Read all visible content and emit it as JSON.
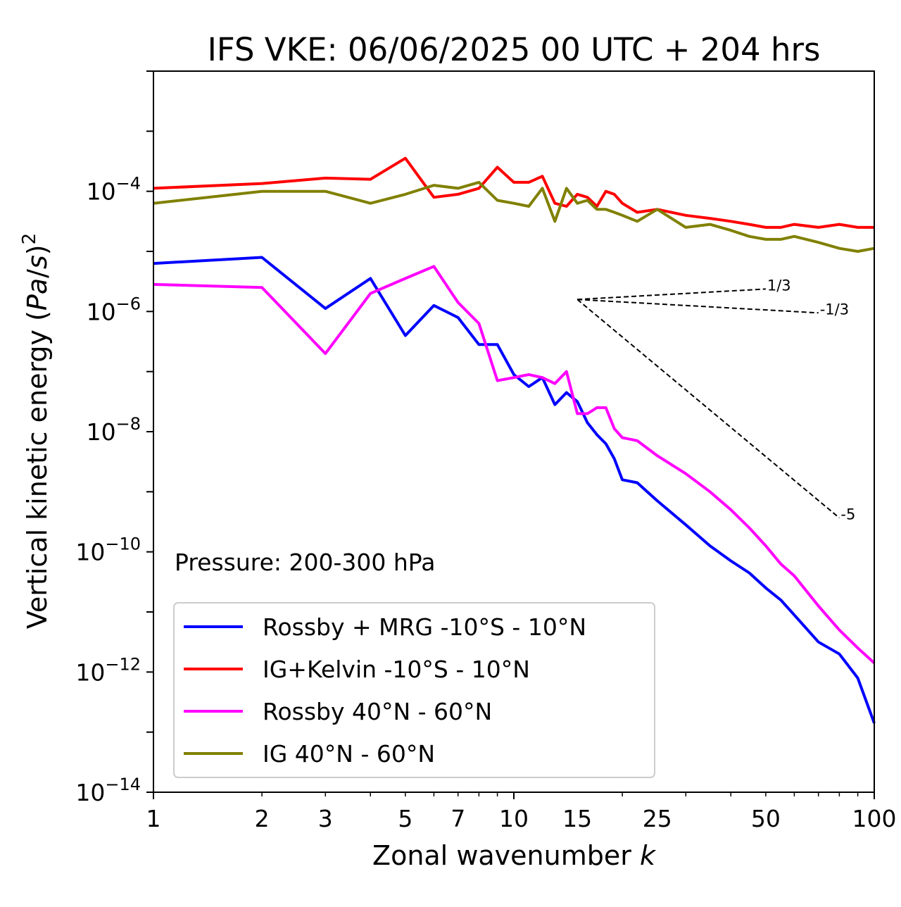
{
  "chart_data": {
    "type": "line",
    "title": "IFS VKE: 06/06/2025 00 UTC + 204 hrs",
    "xlabel": "Zonal wavenumber k",
    "ylabel": "Vertical kinetic energy (Pa/s)²",
    "x_scale": "log",
    "y_scale": "log",
    "xlim": [
      1,
      100
    ],
    "ylim": [
      1e-14,
      0.01
    ],
    "xticks": [
      {
        "value": 1,
        "label": "1"
      },
      {
        "value": 2,
        "label": "2"
      },
      {
        "value": 3,
        "label": "3"
      },
      {
        "value": 5,
        "label": "5"
      },
      {
        "value": 7,
        "label": "7"
      },
      {
        "value": 10,
        "label": "10"
      },
      {
        "value": 15,
        "label": "15"
      },
      {
        "value": 25,
        "label": "25"
      },
      {
        "value": 50,
        "label": "50"
      },
      {
        "value": 100,
        "label": "100"
      }
    ],
    "yticks": [
      {
        "exp": -4,
        "base": "10",
        "sup": "−4"
      },
      {
        "exp": -6,
        "base": "10",
        "sup": "−6"
      },
      {
        "exp": -8,
        "base": "10",
        "sup": "−8"
      },
      {
        "exp": -10,
        "base": "10",
        "sup": "−10"
      },
      {
        "exp": -12,
        "base": "10",
        "sup": "−12"
      },
      {
        "exp": -14,
        "base": "10",
        "sup": "−14"
      }
    ],
    "annotation": "Pressure: 200-300 hPa",
    "legend_position": "lower-left",
    "grid": false,
    "series": [
      {
        "name": "Rossby + MRG -10°S - 10°N",
        "color": "#0000ff",
        "x": [
          1,
          2,
          3,
          4,
          5,
          6,
          7,
          8,
          9,
          10,
          11,
          12,
          13,
          14,
          15,
          16,
          17,
          18,
          19,
          20,
          22,
          25,
          30,
          35,
          40,
          45,
          50,
          55,
          60,
          70,
          80,
          90,
          100
        ],
        "log10_y": [
          -5.2,
          -5.1,
          -5.95,
          -5.45,
          -6.4,
          -5.9,
          -6.1,
          -6.55,
          -6.55,
          -7.05,
          -7.25,
          -7.1,
          -7.55,
          -7.35,
          -7.5,
          -7.85,
          -8.05,
          -8.2,
          -8.45,
          -8.8,
          -8.85,
          -9.15,
          -9.55,
          -9.9,
          -10.15,
          -10.35,
          -10.6,
          -10.8,
          -11.05,
          -11.5,
          -11.7,
          -12.1,
          -12.85
        ]
      },
      {
        "name": "IG+Kelvin -10°S - 10°N",
        "color": "#ff0000",
        "x": [
          1,
          2,
          3,
          4,
          5,
          6,
          7,
          8,
          9,
          10,
          11,
          12,
          13,
          14,
          15,
          16,
          17,
          18,
          19,
          20,
          22,
          25,
          30,
          35,
          40,
          45,
          50,
          55,
          60,
          70,
          80,
          90,
          100
        ],
        "log10_y": [
          -3.95,
          -3.87,
          -3.78,
          -3.8,
          -3.45,
          -4.1,
          -4.05,
          -3.95,
          -3.6,
          -3.85,
          -3.85,
          -3.75,
          -4.2,
          -4.25,
          -4.05,
          -4.1,
          -4.25,
          -4.0,
          -4.05,
          -4.2,
          -4.35,
          -4.3,
          -4.4,
          -4.45,
          -4.5,
          -4.55,
          -4.6,
          -4.6,
          -4.55,
          -4.6,
          -4.55,
          -4.6,
          -4.6
        ]
      },
      {
        "name": "Rossby 40°N - 60°N",
        "color": "#ff00ff",
        "x": [
          1,
          2,
          3,
          4,
          5,
          6,
          7,
          8,
          9,
          10,
          11,
          12,
          13,
          14,
          15,
          16,
          17,
          18,
          19,
          20,
          22,
          25,
          30,
          35,
          40,
          45,
          50,
          55,
          60,
          70,
          80,
          90,
          100
        ],
        "log10_y": [
          -5.55,
          -5.6,
          -6.7,
          -5.7,
          -5.45,
          -5.25,
          -5.85,
          -6.2,
          -7.15,
          -7.1,
          -7.05,
          -7.1,
          -7.2,
          -7.0,
          -7.7,
          -7.7,
          -7.6,
          -7.6,
          -7.95,
          -8.1,
          -8.15,
          -8.4,
          -8.7,
          -9.0,
          -9.3,
          -9.6,
          -9.9,
          -10.2,
          -10.4,
          -10.9,
          -11.3,
          -11.6,
          -11.85
        ]
      },
      {
        "name": "IG 40°N - 60°N",
        "color": "#808000",
        "x": [
          1,
          2,
          3,
          4,
          5,
          6,
          7,
          8,
          9,
          10,
          11,
          12,
          13,
          14,
          15,
          16,
          17,
          18,
          19,
          20,
          22,
          25,
          30,
          35,
          40,
          45,
          50,
          55,
          60,
          70,
          80,
          90,
          100
        ],
        "log10_y": [
          -4.2,
          -4.0,
          -4.0,
          -4.2,
          -4.05,
          -3.9,
          -3.95,
          -3.85,
          -4.15,
          -4.2,
          -4.25,
          -3.95,
          -4.5,
          -3.95,
          -4.2,
          -4.15,
          -4.3,
          -4.3,
          -4.35,
          -4.4,
          -4.5,
          -4.3,
          -4.6,
          -4.55,
          -4.65,
          -4.75,
          -4.8,
          -4.8,
          -4.75,
          -4.85,
          -4.95,
          -5.0,
          -4.95
        ]
      }
    ],
    "reference_slopes": [
      {
        "label": "1/3",
        "x_start": 15,
        "x_end": 50
      },
      {
        "label": "-1/3",
        "x_start": 15,
        "x_end": 70
      },
      {
        "label": "-5",
        "x_start": 15,
        "x_end": 80
      }
    ]
  }
}
